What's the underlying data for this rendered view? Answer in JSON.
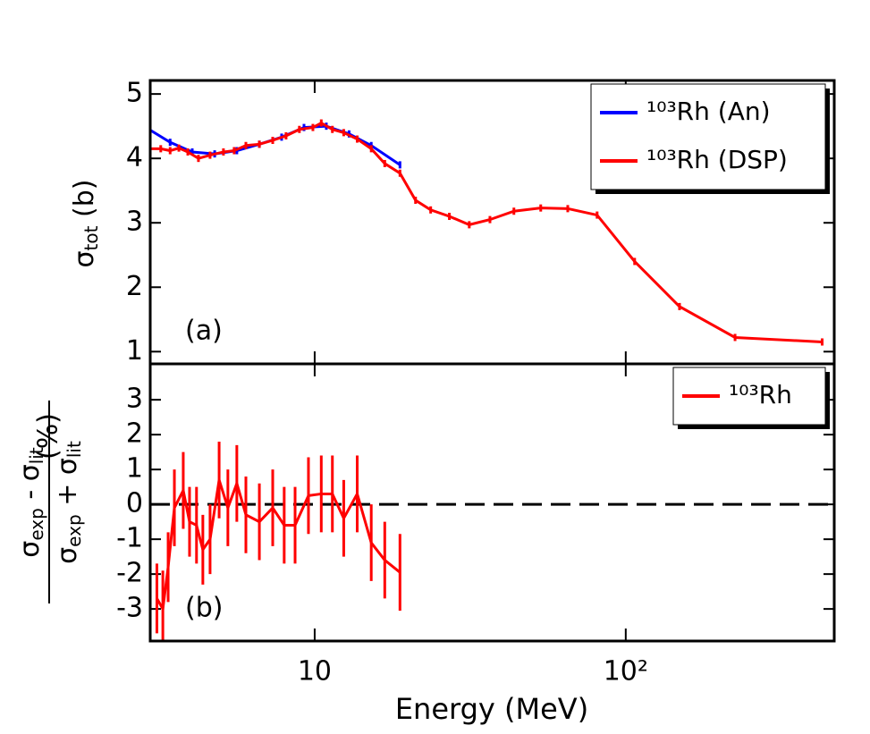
{
  "chart_data": [
    {
      "type": "line",
      "xscale": "log",
      "xlim": [
        2.96,
        468
      ],
      "ylim": [
        0.81,
        5.21
      ],
      "yticks": [
        1,
        2,
        3,
        4,
        5
      ],
      "ylabel": {
        "symbol": "σ",
        "sub": "tot",
        "unit": " (b)"
      },
      "annotation": "(a)",
      "legend": "upper right",
      "series": [
        {
          "name": "¹⁰³Rh (An)",
          "color": "#0000ff",
          "x": [
            2.96,
            3.43,
            4.04,
            4.77,
            5.62,
            6.64,
            7.83,
            9.24,
            10.9,
            12.9,
            15.2,
            18.8
          ],
          "values": [
            4.44,
            4.25,
            4.1,
            4.07,
            4.12,
            4.22,
            4.33,
            4.48,
            4.5,
            4.38,
            4.2,
            3.9
          ]
        },
        {
          "name": "¹⁰³Rh (DSP)",
          "color": "#ff0000",
          "x": [
            2.96,
            3.2,
            3.43,
            3.66,
            3.91,
            4.23,
            4.61,
            5.09,
            5.51,
            6.01,
            6.64,
            7.33,
            8.09,
            8.93,
            9.87,
            10.5,
            11.4,
            12.4,
            13.7,
            15.2,
            16.8,
            18.8,
            21.1,
            23.6,
            27.1,
            31.4,
            36.6,
            43.7,
            53.3,
            65.1,
            80.9,
            106.8,
            148.9,
            224.6,
            428
          ],
          "values": [
            4.15,
            4.15,
            4.12,
            4.16,
            4.1,
            4.0,
            4.05,
            4.1,
            4.12,
            4.2,
            4.22,
            4.28,
            4.35,
            4.45,
            4.48,
            4.55,
            4.45,
            4.4,
            4.3,
            4.15,
            3.92,
            3.77,
            3.35,
            3.2,
            3.1,
            2.97,
            3.05,
            3.18,
            3.23,
            3.22,
            3.12,
            2.4,
            1.7,
            1.22,
            1.15
          ]
        }
      ]
    },
    {
      "type": "line",
      "xscale": "log",
      "xlim": [
        2.96,
        468
      ],
      "ylim": [
        -3.92,
        4.03
      ],
      "yticks": [
        -3,
        -2,
        -1,
        0,
        1,
        2,
        3
      ],
      "xticks": [
        {
          "value": 10,
          "label": "10"
        },
        {
          "value": 100,
          "label": "10²"
        }
      ],
      "xlabel": "Energy (MeV)",
      "ylabel": {
        "numerator": [
          "σ",
          "exp",
          " - σ",
          "lit"
        ],
        "denominator": [
          "σ",
          "exp",
          " + σ",
          "lit"
        ],
        "unit": "(%)"
      },
      "annotation": "(b)",
      "legend": "upper right",
      "hline": 0,
      "series": [
        {
          "name": "¹⁰³Rh",
          "color": "#ff0000",
          "x": [
            3.11,
            3.25,
            3.38,
            3.54,
            3.78,
            3.96,
            4.17,
            4.37,
            4.61,
            4.93,
            5.26,
            5.62,
            6.01,
            6.64,
            7.33,
            7.98,
            8.65,
            9.55,
            10.5,
            11.4,
            12.4,
            13.7,
            15.2,
            16.8,
            18.8
          ],
          "values": [
            -2.7,
            -3.0,
            -1.8,
            -0.1,
            0.4,
            -0.5,
            -0.6,
            -1.3,
            -1.0,
            0.7,
            -0.1,
            0.6,
            -0.3,
            -0.5,
            -0.1,
            -0.6,
            -0.6,
            0.25,
            0.3,
            0.3,
            -0.4,
            0.3,
            -1.1,
            -1.6,
            -1.95
          ],
          "errors": [
            1.0,
            1.1,
            1.0,
            1.1,
            1.1,
            1.0,
            1.1,
            1.0,
            1.0,
            1.1,
            1.1,
            1.1,
            1.1,
            1.1,
            1.1,
            1.1,
            1.1,
            1.1,
            1.1,
            1.1,
            1.1,
            1.1,
            1.1,
            1.1,
            1.1
          ]
        }
      ]
    }
  ]
}
